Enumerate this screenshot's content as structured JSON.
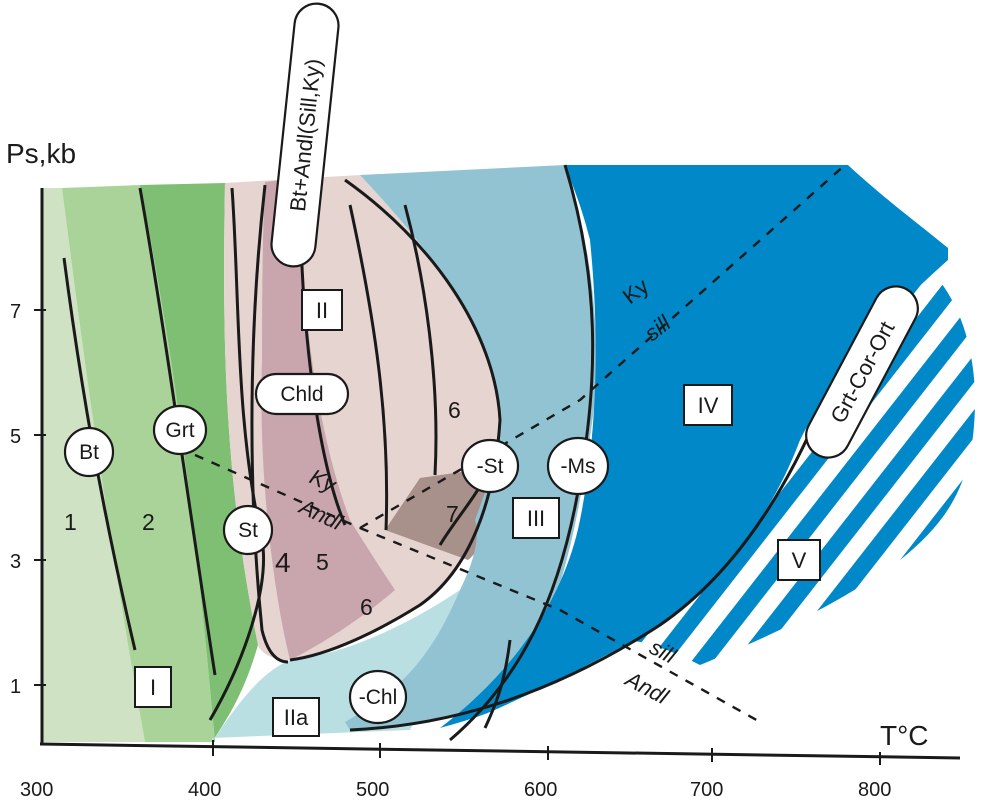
{
  "axes": {
    "y_title": "Ps,kb",
    "x_title": "T°C",
    "x_ticks": [
      "300",
      "400",
      "500",
      "600",
      "700",
      "800"
    ],
    "y_ticks": [
      "1",
      "3",
      "5",
      "7"
    ]
  },
  "zones": {
    "I": "I",
    "IIa": "IIa",
    "II": "II",
    "III": "III",
    "IV": "IV",
    "V": "V"
  },
  "zone_numbers": {
    "n1": "1",
    "n2": "2",
    "n4": "4",
    "n5": "5",
    "n6a": "6",
    "n6b": "6",
    "n7": "7"
  },
  "isograds": {
    "bt": "Bt",
    "grt": "Grt",
    "chld": "Chld",
    "st": "St",
    "minus_st": "-St",
    "minus_ms": "-Ms",
    "minus_chl": "-Chl"
  },
  "assemblages": {
    "bt_andl": "Bt+Andl(Sill,Ky)",
    "grt_cor_ort": "Grt-Cor-Ort"
  },
  "polymorph_labels": {
    "ky_upper": "Ky",
    "sill_upper": "sill",
    "ky_left": "Ky",
    "andl_left": "Andl",
    "sill_lower": "sill",
    "andl_lower": "Andl"
  },
  "colors": {
    "zone1": "#cfe3c4",
    "zone2": "#aad39a",
    "zone3": "#7fbf74",
    "zone_IIa": "#b9dfe3",
    "zone_II_light": "#e6d4d1",
    "zone_II_dark": "#c9a6ad",
    "zone_7": "#a8908b",
    "zone_III": "#92c3d3",
    "zone_IV": "#0088c8",
    "zone_V_stripe": "#0088c8"
  }
}
